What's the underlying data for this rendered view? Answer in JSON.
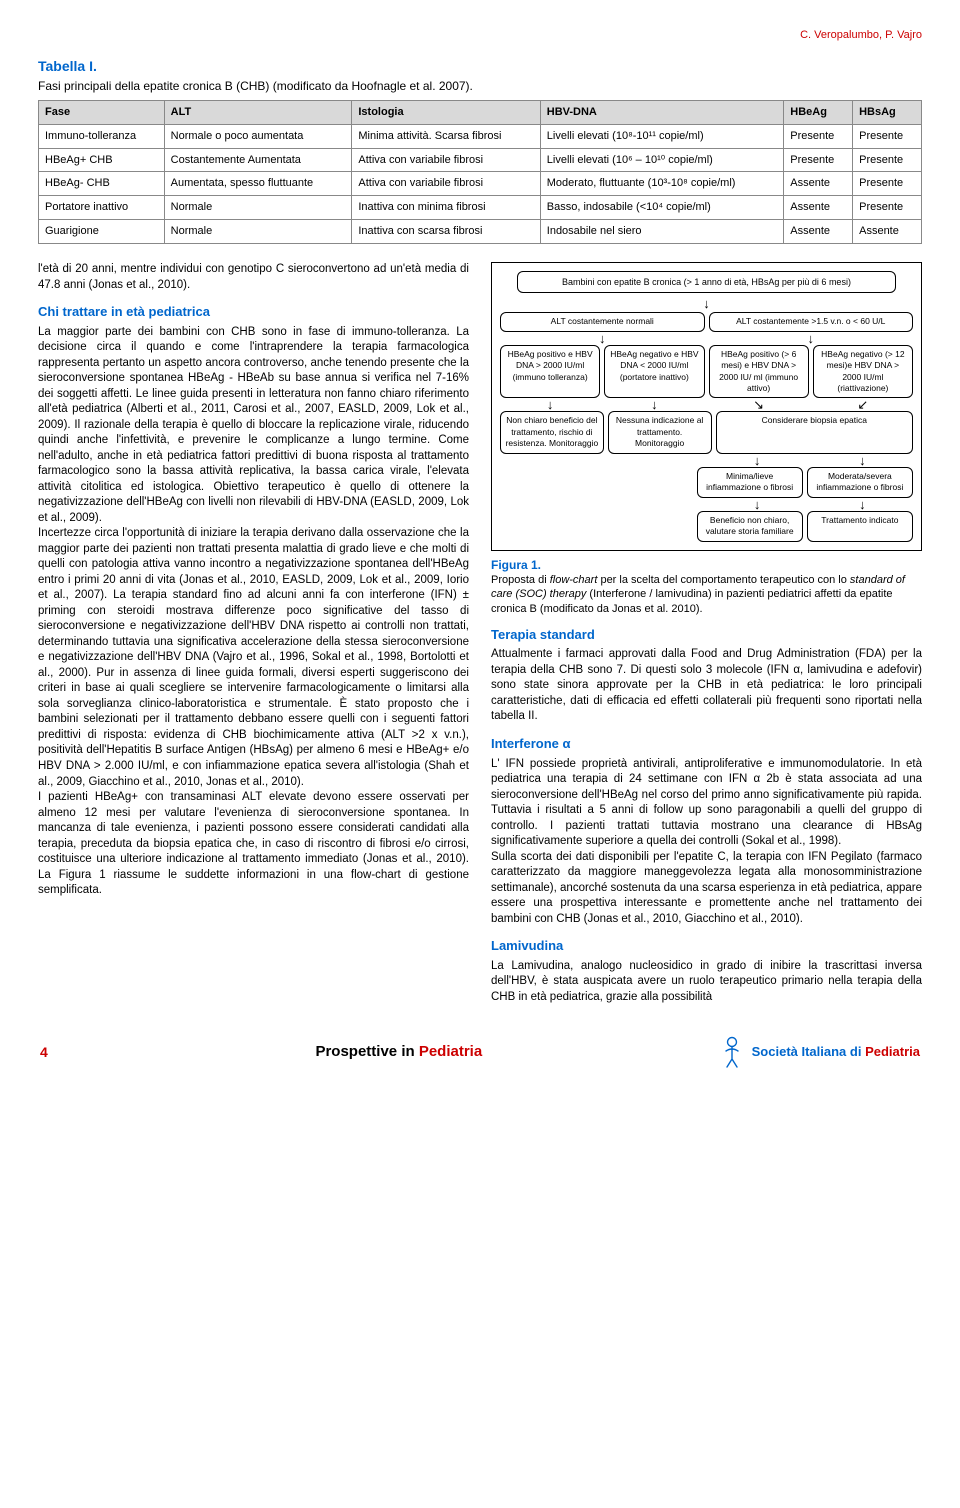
{
  "authors_top": "C. Veropalumbo, P. Vajro",
  "table": {
    "title": "Tabella I.",
    "subtitle": "Fasi principali della epatite cronica B (CHB) (modificato da Hoofnagle et al. 2007).",
    "headers": [
      "Fase",
      "ALT",
      "Istologia",
      "HBV-DNA",
      "HBeAg",
      "HBsAg"
    ],
    "rows": [
      [
        "Immuno-tolleranza",
        "Normale o poco aumentata",
        "Minima attività. Scarsa fibrosi",
        "Livelli elevati (10⁸-10¹¹ copie/ml)",
        "Presente",
        "Presente"
      ],
      [
        "HBeAg+ CHB",
        "Costantemente Aumentata",
        "Attiva con variabile fibrosi",
        "Livelli elevati (10⁶ – 10¹⁰ copie/ml)",
        "Presente",
        "Presente"
      ],
      [
        "HBeAg- CHB",
        "Aumentata, spesso fluttuante",
        "Attiva con variabile fibrosi",
        "Moderato, fluttuante (10³-10⁸ copie/ml)",
        "Assente",
        "Presente"
      ],
      [
        "Portatore inattivo",
        "Normale",
        "Inattiva con minima fibrosi",
        "Basso, indosabile (<10⁴ copie/ml)",
        "Assente",
        "Presente"
      ],
      [
        "Guarigione",
        "Normale",
        "Inattiva con scarsa fibrosi",
        "Indosabile nel siero",
        "Assente",
        "Assente"
      ]
    ]
  },
  "left": {
    "para1": "l'età di 20 anni, mentre individui con genotipo C sieroconvertono ad un'età media di 47.8 anni (Jonas et al., 2010).",
    "head1": "Chi trattare in età pediatrica",
    "para2": "La maggior parte dei bambini con CHB sono in fase di immuno-tolleranza. La decisione circa il quando e come l'intraprendere la terapia farmacologica rappresenta pertanto un aspetto ancora controverso, anche tenendo presente che la sieroconversione spontanea HBeAg - HBeAb su base annua si verifica nel 7-16% dei soggetti affetti. Le linee guida presenti in letteratura non fanno chiaro riferimento all'età pediatrica (Alberti et al., 2011, Carosi et al., 2007, EASLD, 2009, Lok et al., 2009). Il razionale della terapia è quello di bloccare la replicazione virale, riducendo quindi anche l'infettività, e prevenire le complicanze a lungo termine. Come nell'adulto, anche in età pediatrica fattori predittivi di buona risposta al trattamento farmacologico sono la bassa attività replicativa, la bassa carica virale, l'elevata attività citolitica ed istologica. Obiettivo terapeutico è quello di ottenere la negativizzazione dell'HBeAg con livelli non rilevabili di HBV-DNA (EASLD, 2009, Lok et al., 2009).",
    "para3": "Incertezze circa l'opportunità di iniziare la terapia derivano dalla osservazione che la maggior parte dei pazienti non trattati presenta malattia di grado lieve e che molti di quelli con patologia attiva vanno incontro a negativizzazione spontanea dell'HBeAg entro i primi 20 anni di vita (Jonas et al., 2010, EASLD, 2009, Lok et al., 2009, Iorio et al., 2007). La terapia standard fino ad alcuni anni fa con interferone (IFN) ± priming con steroidi mostrava differenze poco significative del tasso di sieroconversione e negativizzazione dell'HBV DNA rispetto ai controlli non trattati, determinando tuttavia una significativa accelerazione della stessa sieroconversione e negativizzazione dell'HBV DNA (Vajro et al., 1996, Sokal et al., 1998, Bortolotti et al., 2000). Pur in assenza di linee guida formali, diversi esperti suggeriscono dei criteri in base ai quali scegliere se intervenire farmacologicamente o limitarsi alla sola sorveglianza clinico-laboratoristica e strumentale. È stato proposto che i bambini selezionati per il trattamento debbano essere quelli con i seguenti fattori predittivi di risposta: evidenza di CHB biochimicamente attiva (ALT >2 x v.n.), positività dell'Hepatitis B surface Antigen (HBsAg) per almeno 6 mesi e HBeAg+ e/o HBV DNA > 2.000 IU/ml, e con infiammazione epatica severa all'istologia (Shah et al., 2009, Giacchino et al., 2010, Jonas et al., 2010).",
    "para4": "I pazienti HBeAg+ con transaminasi ALT elevate devono essere osservati per almeno 12 mesi per valutare l'evenienza di sieroconversione spontanea. In mancanza di tale evenienza, i pazienti possono essere considerati candidati alla terapia, preceduta da biopsia epatica che, in caso di riscontro di fibrosi e/o cirrosi, costituisce una ulteriore indicazione al trattamento immediato (Jonas et al., 2010). La Figura 1 riassume le suddette informazioni in una flow-chart di gestione semplificata."
  },
  "flowchart": {
    "top": "Bambini con epatite B cronica (> 1 anno di età, HBsAg per più di 6 mesi)",
    "alt_row": [
      "ALT costantemente normali",
      "ALT costantemente >1.5 v.n. o < 60 U/L"
    ],
    "groups": [
      "HBeAg positivo e HBV DNA > 2000 IU/ml (immuno tolleranza)",
      "HBeAg negativo e HBV DNA < 2000 IU/ml (portatore inattivo)",
      "HBeAg positivo (> 6 mesi) e HBV DNA > 2000 IU/ ml (immuno attivo)",
      "HBeAg negativo (> 12 mesi)e HBV DNA > 2000 IU/ml (riattivazione)"
    ],
    "consider": "Considerare biopsia epatica",
    "mid_left": [
      "Non chiaro beneficio del trattamento, rischio di resistenza. Monitoraggio",
      "Nessuna indicazione al trattamento. Monitoraggio"
    ],
    "mid_right": [
      "Minima/lieve infiammazione o fibrosi",
      "Moderata/severa infiammazione o fibrosi"
    ],
    "bottom": [
      "Beneficio non chiaro, valutare storia familiare",
      "Trattamento indicato"
    ]
  },
  "fig": {
    "label": "Figura 1.",
    "caption_a": "Proposta di ",
    "caption_b": "flow-chart",
    "caption_c": " per la scelta del comportamento terapeutico con lo ",
    "caption_d": "standard of care (SOC) therapy",
    "caption_e": " (Interferone / lamivudina) in pazienti pediatrici affetti da epatite cronica B (modificato da Jonas et al. 2010)."
  },
  "right": {
    "head1": "Terapia standard",
    "para1": "Attualmente i farmaci approvati dalla Food and Drug Administration (FDA) per la terapia della CHB sono 7. Di questi solo 3 molecole (IFN α, lamivudina e adefovir) sono state sinora approvate per la CHB in età pediatrica: le loro principali caratteristiche, dati di efficacia ed effetti collaterali più frequenti sono riportati nella tabella II.",
    "head2": "Interferone α",
    "para2": "L' IFN possiede proprietà antivirali, antiproliferative e immunomodulatorie. In età pediatrica una terapia di 24 settimane con IFN α 2b è stata associata ad una sieroconversione dell'HBeAg nel corso del primo anno significativamente più rapida. Tuttavia i risultati a 5 anni di follow up sono paragonabili a quelli del gruppo di controllo. I pazienti trattati tuttavia mostrano una clearance di HBsAg significativamente superiore a quella dei controlli (Sokal et al., 1998).",
    "para3": "Sulla scorta dei dati disponibili per l'epatite C, la terapia con IFN Pegilato (farmaco caratterizzato da maggiore maneggevolezza legata alla monosomministrazione settimanale), ancorché sostenuta da una scarsa esperienza in età pediatrica, appare essere una prospettiva interessante e promettente anche nel trattamento dei bambini con CHB (Jonas et al., 2010, Giacchino et al., 2010).",
    "head3": "Lamivudina",
    "para4": "La Lamivudina, analogo nucleosidico in grado di inibire la trascrittasi inversa dell'HBV, è stata auspicata avere un ruolo terapeutico primario nella terapia della CHB in età pediatrica, grazie alla possibilità"
  },
  "footer": {
    "page": "4",
    "journal_a": "Prospettive in ",
    "journal_b": "Pediatria",
    "soc_a": "Società Italiana di ",
    "soc_b": "Pediatria"
  }
}
